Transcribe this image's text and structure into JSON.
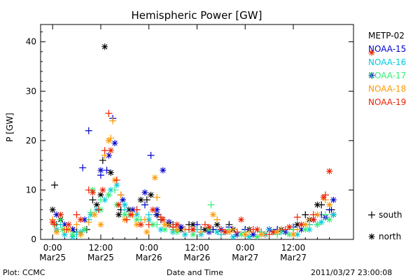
{
  "chart_data": {
    "type": "scatter",
    "title": "Hemispheric Power [GW]",
    "ylabel": "P [GW]",
    "xlabel": "Date and Time",
    "ylim": [
      0,
      43.5
    ],
    "yticks": [
      0,
      10,
      20,
      30,
      40
    ],
    "xlim_hours": [
      -3.0,
      75.0
    ],
    "xticks": [
      {
        "h": 0,
        "line1": "0:00",
        "line2": "Mar25"
      },
      {
        "h": 12,
        "line1": "12:00",
        "line2": "Mar25"
      },
      {
        "h": 24,
        "line1": "0:00",
        "line2": "Mar26"
      },
      {
        "h": 36,
        "line1": "12:00",
        "line2": "Mar26"
      },
      {
        "h": 48,
        "line1": "0:00",
        "line2": "Mar27"
      },
      {
        "h": 60,
        "line1": "12:00",
        "line2": "Mar27"
      }
    ],
    "series": [
      {
        "name": "METP-02",
        "color": "#000000",
        "north_legend_value": null,
        "south_legend_value": null,
        "south": [
          [
            0.5,
            11.0
          ],
          [
            1.0,
            3.0
          ],
          [
            3.0,
            2.0
          ],
          [
            6.0,
            1.5
          ],
          [
            8.5,
            2.0
          ],
          [
            10.0,
            8.0
          ],
          [
            12.5,
            16.0
          ],
          [
            17.0,
            6.0
          ],
          [
            20.0,
            5.0
          ],
          [
            23.5,
            8.0
          ],
          [
            27.0,
            4.0
          ],
          [
            30.0,
            3.0
          ],
          [
            34.0,
            3.0
          ],
          [
            37.0,
            2.0
          ],
          [
            40.0,
            2.0
          ],
          [
            44.0,
            3.0
          ],
          [
            48.0,
            2.0
          ],
          [
            52.0,
            1.5
          ],
          [
            56.0,
            2.0
          ],
          [
            60.0,
            2.0
          ],
          [
            63.0,
            5.0
          ],
          [
            67.0,
            7.0
          ],
          [
            69.5,
            6.0
          ]
        ],
        "north": [
          [
            0.0,
            6.0
          ],
          [
            2.0,
            4.0
          ],
          [
            5.0,
            2.0
          ],
          [
            8.0,
            2.0
          ],
          [
            11.0,
            7.0
          ],
          [
            12.0,
            9.0
          ],
          [
            13.0,
            39.0
          ],
          [
            14.5,
            13.5
          ],
          [
            16.5,
            5.0
          ],
          [
            19.0,
            6.0
          ],
          [
            22.0,
            8.0
          ],
          [
            24.5,
            9.0
          ],
          [
            26.0,
            5.0
          ],
          [
            29.0,
            3.0
          ],
          [
            32.0,
            2.0
          ],
          [
            35.0,
            3.0
          ],
          [
            38.0,
            2.0
          ],
          [
            41.0,
            3.0
          ],
          [
            45.0,
            2.0
          ],
          [
            49.0,
            2.0
          ],
          [
            53.0,
            1.0
          ],
          [
            57.0,
            2.0
          ],
          [
            61.0,
            3.0
          ],
          [
            64.0,
            4.0
          ],
          [
            66.0,
            7.0
          ],
          [
            70.0,
            5.0
          ]
        ]
      },
      {
        "name": "NOAA-15",
        "color": "#0000cc",
        "north_legend_value": 33.2,
        "south_legend_value": null,
        "south": [
          [
            7.5,
            14.5
          ],
          [
            9.0,
            22.0
          ],
          [
            12.0,
            13.0
          ],
          [
            13.5,
            14.0
          ],
          [
            15.0,
            24.5
          ],
          [
            17.0,
            9.0
          ],
          [
            21.0,
            6.0
          ],
          [
            23.0,
            7.0
          ],
          [
            24.5,
            17.0
          ],
          [
            26.0,
            5.0
          ],
          [
            29.0,
            3.0
          ],
          [
            33.0,
            2.0
          ],
          [
            36.0,
            3.0
          ],
          [
            40.0,
            2.0
          ],
          [
            44.0,
            2.5
          ],
          [
            48.0,
            2.0
          ],
          [
            52.0,
            1.5
          ],
          [
            56.0,
            2.0
          ],
          [
            60.0,
            2.5
          ],
          [
            64.0,
            3.0
          ],
          [
            67.0,
            5.0
          ],
          [
            69.0,
            6.0
          ]
        ],
        "north": [
          [
            1.0,
            5.0
          ],
          [
            3.0,
            3.0
          ],
          [
            5.0,
            2.0
          ],
          [
            8.0,
            4.0
          ],
          [
            12.0,
            14.0
          ],
          [
            14.0,
            17.0
          ],
          [
            15.5,
            19.5
          ],
          [
            17.5,
            8.0
          ],
          [
            20.0,
            6.0
          ],
          [
            23.0,
            9.5
          ],
          [
            27.5,
            14.0
          ],
          [
            26.0,
            6.0
          ],
          [
            29.0,
            3.5
          ],
          [
            32.0,
            2.5
          ],
          [
            35.0,
            2.0
          ],
          [
            39.0,
            1.5
          ],
          [
            42.0,
            2.0
          ],
          [
            46.0,
            1.0
          ],
          [
            50.0,
            1.0
          ],
          [
            54.0,
            2.0
          ],
          [
            58.0,
            1.5
          ],
          [
            62.0,
            2.0
          ],
          [
            65.0,
            4.0
          ],
          [
            68.0,
            4.5
          ],
          [
            70.0,
            8.0
          ]
        ]
      },
      {
        "name": "NOAA-16",
        "color": "#00ccdd",
        "north_legend_value": null,
        "south_legend_value": null,
        "south": [
          [
            2.0,
            3.0
          ],
          [
            6.0,
            1.0
          ],
          [
            9.0,
            4.0
          ],
          [
            14.0,
            9.0
          ],
          [
            18.0,
            6.0
          ],
          [
            24.0,
            5.0
          ],
          [
            30.0,
            2.0
          ],
          [
            36.0,
            2.0
          ],
          [
            42.0,
            1.0
          ],
          [
            48.0,
            1.5
          ],
          [
            54.0,
            2.0
          ],
          [
            60.0,
            2.0
          ],
          [
            66.0,
            3.0
          ]
        ],
        "north": [
          [
            1.0,
            2.0
          ],
          [
            3.0,
            1.0
          ],
          [
            5.0,
            0.5
          ],
          [
            7.0,
            1.5
          ],
          [
            9.5,
            5.0
          ],
          [
            11.0,
            6.0
          ],
          [
            13.0,
            8.0
          ],
          [
            14.5,
            10.0
          ],
          [
            16.0,
            11.0
          ],
          [
            18.0,
            7.0
          ],
          [
            21.0,
            5.0
          ],
          [
            24.0,
            4.0
          ],
          [
            27.0,
            2.0
          ],
          [
            30.0,
            1.5
          ],
          [
            33.0,
            1.0
          ],
          [
            37.0,
            1.0
          ],
          [
            41.0,
            1.5
          ],
          [
            45.0,
            0.5
          ],
          [
            49.0,
            0.5
          ],
          [
            53.0,
            1.0
          ],
          [
            57.0,
            1.5
          ],
          [
            61.0,
            1.0
          ],
          [
            64.0,
            2.0
          ],
          [
            67.0,
            3.5
          ],
          [
            70.0,
            5.0
          ]
        ]
      },
      {
        "name": "NOAA-17",
        "color": "#33ee77",
        "north_legend_value": null,
        "south_legend_value": null,
        "south": [
          [
            2.0,
            4.0
          ],
          [
            4.0,
            2.0
          ],
          [
            7.0,
            1.0
          ],
          [
            9.5,
            5.5
          ],
          [
            12.0,
            8.0
          ],
          [
            15.5,
            10.0
          ],
          [
            19.0,
            5.0
          ],
          [
            22.0,
            4.0
          ],
          [
            26.0,
            3.0
          ],
          [
            30.0,
            2.0
          ],
          [
            34.0,
            2.0
          ],
          [
            39.5,
            7.0
          ],
          [
            44.0,
            2.0
          ],
          [
            48.0,
            1.0
          ],
          [
            52.0,
            1.5
          ],
          [
            56.0,
            1.0
          ],
          [
            60.0,
            2.0
          ],
          [
            64.0,
            3.0
          ],
          [
            68.0,
            5.0
          ]
        ],
        "north": [
          [
            0.5,
            3.0
          ],
          [
            2.5,
            2.0
          ],
          [
            5.0,
            1.0
          ],
          [
            8.0,
            2.0
          ],
          [
            10.0,
            10.0
          ],
          [
            12.0,
            6.0
          ],
          [
            14.0,
            9.0
          ],
          [
            16.0,
            7.0
          ],
          [
            18.0,
            5.0
          ],
          [
            21.0,
            4.0
          ],
          [
            25.0,
            3.0
          ],
          [
            28.0,
            2.0
          ],
          [
            31.0,
            1.5
          ],
          [
            35.0,
            1.0
          ],
          [
            39.0,
            2.0
          ],
          [
            43.0,
            1.5
          ],
          [
            47.0,
            1.0
          ],
          [
            51.0,
            0.5
          ],
          [
            55.0,
            1.5
          ],
          [
            59.0,
            1.0
          ],
          [
            63.0,
            2.0
          ],
          [
            66.0,
            3.0
          ],
          [
            69.0,
            4.0
          ]
        ]
      },
      {
        "name": "NOAA-18",
        "color": "#ff9900",
        "north_legend_value": null,
        "south_legend_value": null,
        "south": [
          [
            0.0,
            4.0
          ],
          [
            3.0,
            2.0
          ],
          [
            6.0,
            3.0
          ],
          [
            9.0,
            3.5
          ],
          [
            13.0,
            17.0
          ],
          [
            14.5,
            20.5
          ],
          [
            15.0,
            24.0
          ],
          [
            17.0,
            9.0
          ],
          [
            20.0,
            5.0
          ],
          [
            23.0,
            4.0
          ],
          [
            26.0,
            8.5
          ],
          [
            29.0,
            3.0
          ],
          [
            33.0,
            2.0
          ],
          [
            37.0,
            1.5
          ],
          [
            41.0,
            4.0
          ],
          [
            45.0,
            2.0
          ],
          [
            49.0,
            1.5
          ],
          [
            53.0,
            1.0
          ],
          [
            57.0,
            2.0
          ],
          [
            61.0,
            2.0
          ],
          [
            64.0,
            4.0
          ],
          [
            68.0,
            8.0
          ]
        ],
        "north": [
          [
            1.0,
            1.5
          ],
          [
            4.0,
            2.0
          ],
          [
            7.0,
            1.0
          ],
          [
            10.5,
            5.0
          ],
          [
            12.0,
            3.0
          ],
          [
            14.0,
            20.0
          ],
          [
            15.5,
            12.0
          ],
          [
            18.0,
            4.0
          ],
          [
            21.0,
            3.0
          ],
          [
            23.5,
            1.5
          ],
          [
            25.5,
            12.5
          ],
          [
            28.0,
            3.0
          ],
          [
            31.0,
            2.0
          ],
          [
            35.0,
            2.0
          ],
          [
            40.0,
            5.0
          ],
          [
            44.0,
            1.5
          ],
          [
            48.0,
            1.0
          ],
          [
            52.0,
            1.0
          ],
          [
            56.0,
            1.5
          ],
          [
            60.0,
            1.0
          ],
          [
            63.0,
            3.0
          ],
          [
            66.0,
            5.0
          ],
          [
            69.0,
            7.0
          ]
        ]
      },
      {
        "name": "NOAA-19",
        "color": "#ee2200",
        "north_legend_value": 37.8,
        "south_legend_value": null,
        "south": [
          [
            0.5,
            3.0
          ],
          [
            3.5,
            2.0
          ],
          [
            6.0,
            5.0
          ],
          [
            9.0,
            10.0
          ],
          [
            11.5,
            6.0
          ],
          [
            13.0,
            18.0
          ],
          [
            14.0,
            25.5
          ],
          [
            16.0,
            12.0
          ],
          [
            18.5,
            4.0
          ],
          [
            21.0,
            6.0
          ],
          [
            24.0,
            3.0
          ],
          [
            27.0,
            4.5
          ],
          [
            30.0,
            2.5
          ],
          [
            34.0,
            2.0
          ],
          [
            38.0,
            3.0
          ],
          [
            42.0,
            2.0
          ],
          [
            46.0,
            1.5
          ],
          [
            50.0,
            2.0
          ],
          [
            54.0,
            1.0
          ],
          [
            58.0,
            2.0
          ],
          [
            61.0,
            4.5
          ],
          [
            65.0,
            5.0
          ],
          [
            68.0,
            9.0
          ]
        ],
        "north": [
          [
            0.0,
            3.5
          ],
          [
            2.0,
            5.0
          ],
          [
            4.0,
            3.0
          ],
          [
            7.0,
            4.0
          ],
          [
            10.0,
            9.5
          ],
          [
            12.5,
            10.0
          ],
          [
            14.5,
            18.0
          ],
          [
            16.5,
            7.0
          ],
          [
            19.5,
            5.0
          ],
          [
            22.0,
            3.0
          ],
          [
            25.0,
            6.0
          ],
          [
            27.5,
            4.0
          ],
          [
            31.0,
            3.0
          ],
          [
            35.0,
            2.0
          ],
          [
            39.0,
            2.5
          ],
          [
            43.0,
            1.5
          ],
          [
            47.0,
            4.0
          ],
          [
            51.0,
            2.0
          ],
          [
            55.0,
            1.5
          ],
          [
            59.0,
            2.5
          ],
          [
            62.0,
            3.0
          ],
          [
            65.0,
            4.0
          ],
          [
            67.5,
            8.5
          ],
          [
            69.0,
            13.8
          ]
        ]
      }
    ],
    "markers": {
      "south": "+",
      "north": "*"
    },
    "marker_legend": [
      {
        "symbol": "+",
        "label": "south"
      },
      {
        "symbol": "*",
        "label": "north"
      }
    ]
  },
  "footer": {
    "left": "Plot: CCMC",
    "center": "Date and Time",
    "right": "2011/03/27 23:00:08"
  }
}
